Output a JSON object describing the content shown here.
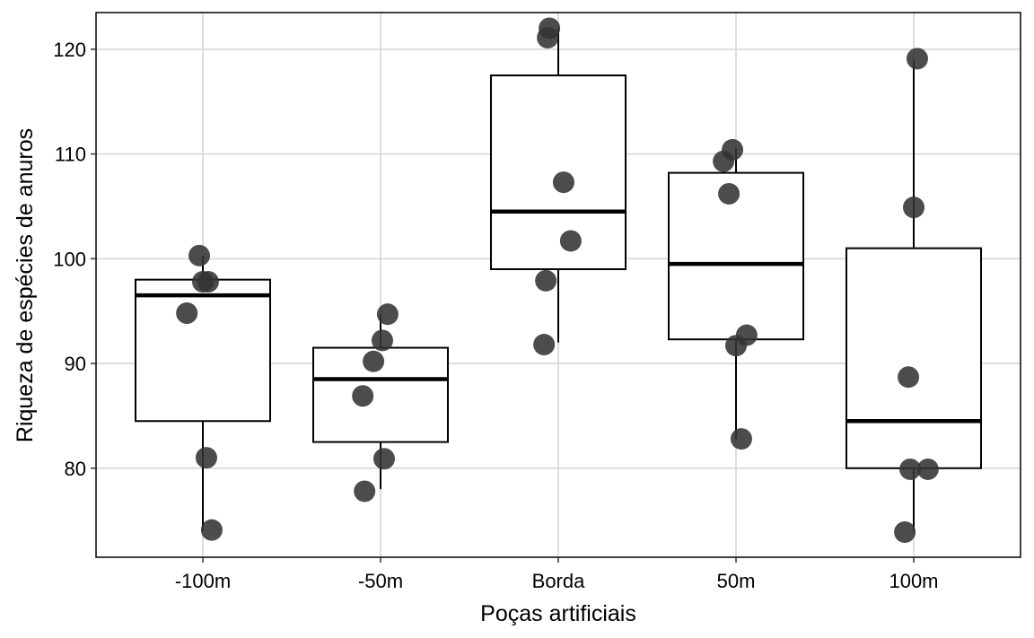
{
  "chart_data": {
    "type": "boxplot",
    "title": "",
    "xlabel": "Poças artificiais",
    "ylabel": "Riqueza de espécies de anuros",
    "categories": [
      "-100m",
      "-50m",
      "Borda",
      "50m",
      "100m"
    ],
    "ylim": [
      71.5,
      123.5
    ],
    "yticks": [
      80,
      90,
      100,
      110,
      120
    ],
    "grid": true,
    "legend": "none",
    "point_color": "#333333",
    "box_color": "#000000",
    "boxes": [
      {
        "category": "-100m",
        "whisker_low": 74.0,
        "q1": 84.5,
        "median": 96.5,
        "q3": 98.0,
        "whisker_high": 100.3
      },
      {
        "category": "-50m",
        "whisker_low": 78.0,
        "q1": 82.5,
        "median": 88.5,
        "q3": 91.5,
        "whisker_high": 94.7
      },
      {
        "category": "Borda",
        "whisker_low": 92.0,
        "q1": 99.0,
        "median": 104.5,
        "q3": 117.5,
        "whisker_high": 122.0
      },
      {
        "category": "50m",
        "whisker_low": 82.8,
        "q1": 92.3,
        "median": 99.5,
        "q3": 108.2,
        "whisker_high": 110.5
      },
      {
        "category": "100m",
        "whisker_low": 74.0,
        "q1": 80.0,
        "median": 84.5,
        "q3": 101.0,
        "whisker_high": 119.0
      }
    ],
    "points": [
      {
        "category": "-100m",
        "jitter": -0.02,
        "y": 100.3
      },
      {
        "category": "-100m",
        "jitter": 0.0,
        "y": 97.8
      },
      {
        "category": "-100m",
        "jitter": 0.03,
        "y": 97.8
      },
      {
        "category": "-100m",
        "jitter": -0.09,
        "y": 94.8
      },
      {
        "category": "-100m",
        "jitter": 0.02,
        "y": 81.0
      },
      {
        "category": "-100m",
        "jitter": 0.05,
        "y": 74.1
      },
      {
        "category": "-50m",
        "jitter": 0.04,
        "y": 94.7
      },
      {
        "category": "-50m",
        "jitter": 0.01,
        "y": 92.2
      },
      {
        "category": "-50m",
        "jitter": -0.04,
        "y": 90.2
      },
      {
        "category": "-50m",
        "jitter": -0.1,
        "y": 86.9
      },
      {
        "category": "-50m",
        "jitter": 0.02,
        "y": 80.9
      },
      {
        "category": "-50m",
        "jitter": -0.09,
        "y": 77.8
      },
      {
        "category": "Borda",
        "jitter": -0.06,
        "y": 121.1
      },
      {
        "category": "Borda",
        "jitter": -0.05,
        "y": 122.0
      },
      {
        "category": "Borda",
        "jitter": 0.03,
        "y": 107.3
      },
      {
        "category": "Borda",
        "jitter": 0.07,
        "y": 101.7
      },
      {
        "category": "Borda",
        "jitter": -0.07,
        "y": 97.9
      },
      {
        "category": "Borda",
        "jitter": -0.08,
        "y": 91.8
      },
      {
        "category": "50m",
        "jitter": -0.07,
        "y": 109.3
      },
      {
        "category": "50m",
        "jitter": -0.02,
        "y": 110.4
      },
      {
        "category": "50m",
        "jitter": -0.04,
        "y": 106.2
      },
      {
        "category": "50m",
        "jitter": 0.06,
        "y": 92.7
      },
      {
        "category": "50m",
        "jitter": 0.0,
        "y": 91.7
      },
      {
        "category": "50m",
        "jitter": 0.03,
        "y": 82.8
      },
      {
        "category": "100m",
        "jitter": 0.02,
        "y": 119.1
      },
      {
        "category": "100m",
        "jitter": 0.0,
        "y": 104.9
      },
      {
        "category": "100m",
        "jitter": -0.03,
        "y": 88.7
      },
      {
        "category": "100m",
        "jitter": -0.02,
        "y": 79.9
      },
      {
        "category": "100m",
        "jitter": 0.08,
        "y": 79.9
      },
      {
        "category": "100m",
        "jitter": -0.05,
        "y": 73.9
      }
    ]
  }
}
